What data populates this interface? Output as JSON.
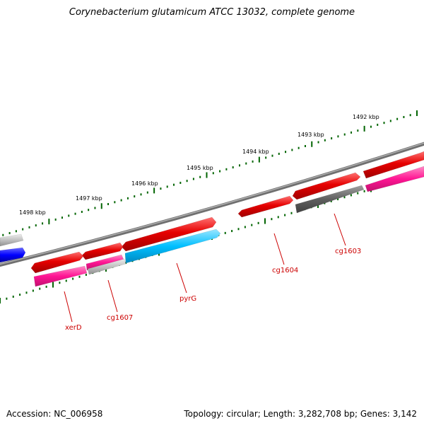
{
  "header": {
    "title": "Corynebacterium glutamicum ATCC 13032, complete genome"
  },
  "footer": {
    "accession": "Accession: NC_006958",
    "summary": "Topology: circular; Length: 3,282,708 bp; Genes: 3,142"
  },
  "scale_labels": [
    "1492 kbp",
    "1493 kbp",
    "1494 kbp",
    "1495 kbp",
    "1496 kbp",
    "1497 kbp",
    "1498 kbp"
  ],
  "gene_labels": [
    "cg1603",
    "cg1604",
    "pyrG",
    "cg1607",
    "xerD"
  ],
  "colors": {
    "forward_gene": "#e60000",
    "reverse_gene": "#ff1493",
    "pyrG_gene": "#00bfff",
    "hypothetical_gene": "#606060",
    "light_gene": "#c0c0c0",
    "blue_gene": "#0000ff",
    "backbone": "#707070",
    "ticks": "#006400",
    "labels": "#cc0000"
  }
}
